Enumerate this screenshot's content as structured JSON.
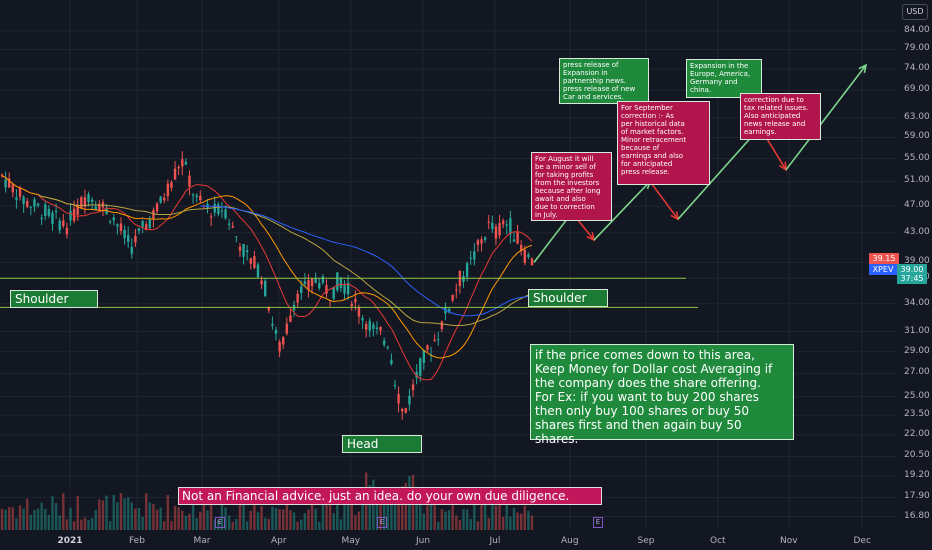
{
  "header": {
    "currency": "USD"
  },
  "chart_data": {
    "type": "candlestick",
    "symbol": "XPEV",
    "y_scale": "log",
    "y_range": [
      16.5,
      90
    ],
    "y_ticks": [
      "84.00",
      "79.00",
      "74.00",
      "69.00",
      "63.00",
      "59.00",
      "55.00",
      "51.00",
      "47.00",
      "43.00",
      "39.00",
      "37.00",
      "34.00",
      "31.00",
      "29.00",
      "27.00",
      "25.00",
      "23.50",
      "22.00",
      "20.50",
      "19.20",
      "17.90",
      "16.80"
    ],
    "x_ticks": [
      {
        "label": "2021",
        "bold": true
      },
      {
        "label": "Feb"
      },
      {
        "label": "Mar"
      },
      {
        "label": "Apr"
      },
      {
        "label": "May"
      },
      {
        "label": "Jun"
      },
      {
        "label": "Jul"
      },
      {
        "label": "Aug"
      },
      {
        "label": "Sep"
      },
      {
        "label": "Oct"
      },
      {
        "label": "Nov"
      },
      {
        "label": "Dec"
      }
    ],
    "price_labels": {
      "last": "39.15",
      "symbol_price": "39.00",
      "countdown": "37:45"
    },
    "close_path": [
      [
        0,
        52
      ],
      [
        3,
        48
      ],
      [
        6,
        46
      ],
      [
        9,
        44
      ],
      [
        12,
        49
      ],
      [
        15,
        46
      ],
      [
        18,
        41
      ],
      [
        20,
        44
      ],
      [
        22,
        47
      ],
      [
        24,
        52
      ],
      [
        25,
        55
      ],
      [
        26,
        52
      ],
      [
        27,
        48
      ],
      [
        28,
        47
      ],
      [
        30,
        46
      ],
      [
        31,
        47
      ],
      [
        32,
        44
      ],
      [
        33,
        42
      ],
      [
        34,
        40
      ],
      [
        36,
        38
      ],
      [
        37,
        35
      ],
      [
        38,
        31
      ],
      [
        39,
        29
      ],
      [
        40,
        32
      ],
      [
        41,
        35
      ],
      [
        43,
        36
      ],
      [
        44,
        37
      ],
      [
        45,
        36
      ],
      [
        46,
        35
      ],
      [
        47,
        37
      ],
      [
        48,
        36
      ],
      [
        50,
        33
      ],
      [
        51,
        32
      ],
      [
        52,
        31
      ],
      [
        54,
        30
      ],
      [
        55,
        26
      ],
      [
        56,
        23.5
      ],
      [
        57,
        25
      ],
      [
        58,
        27
      ],
      [
        59,
        28.5
      ],
      [
        60,
        29.5
      ],
      [
        61,
        31
      ],
      [
        62,
        33
      ],
      [
        63,
        35
      ],
      [
        64,
        37
      ],
      [
        65,
        38
      ],
      [
        66,
        40
      ],
      [
        67,
        42
      ],
      [
        68,
        44
      ],
      [
        69,
        43
      ],
      [
        70,
        44.5
      ],
      [
        71,
        44
      ],
      [
        72,
        42
      ],
      [
        73,
        40
      ],
      [
        74,
        39.2
      ]
    ],
    "shoulder_levels": [
      37.0,
      33.6
    ],
    "patterns": [
      {
        "label": "Shoulder"
      },
      {
        "label": "Head"
      },
      {
        "label": "Shoulder"
      }
    ],
    "notes": [
      {
        "color": "#b0164b",
        "text": "For August it will\nbe a minor sell of\nfor taking  profits\nfrom the investors\nbecause after long\nawait and also\ndue to correction\nin July."
      },
      {
        "color": "#1f8a3c",
        "text": "press release of\nExpansion in\npartnership news.\npress release of new\nCar and services."
      },
      {
        "color": "#b0164b",
        "text": "For September\ncorrection :- As\nper historical data\nof market factors.\nMinor retracement\nbecause of\nearnings and also\nfor anticipated\npress release."
      },
      {
        "color": "#1f8a3c",
        "text": "Expansion in the\nEurope, America,\nGermany and\nchina."
      },
      {
        "color": "#b0164b",
        "text": "correction due to\ntax related issues.\nAlso anticipated\nnews release and\nearnings."
      }
    ],
    "info_text": "if the price comes down to this area,\nKeep Money for Dollar cost Averaging if\nthe company does the share offering.\nFor Ex: if you want to buy 200 shares\nthen only buy 100 shares or buy 50\nshares first and then again buy 50\nshares.",
    "disclaimer": "Not an Financial advice. just an idea. do your own due diligence.",
    "projection": [
      39,
      46,
      42,
      51,
      45,
      61,
      53,
      75
    ],
    "earnings_markers": [
      "E",
      "E",
      "E"
    ],
    "colors": {
      "up": "#26a69a",
      "down": "#ef5350",
      "ma_blue": "#2962ff",
      "ma_orange": "#ff9800",
      "ma_red": "#e53935",
      "ma_olive": "#b5a642",
      "background": "#131722",
      "grid": "#1f2430",
      "support_line": "#8bc34a",
      "projection_up": "#7bd68c",
      "projection_down": "#e53935"
    }
  }
}
